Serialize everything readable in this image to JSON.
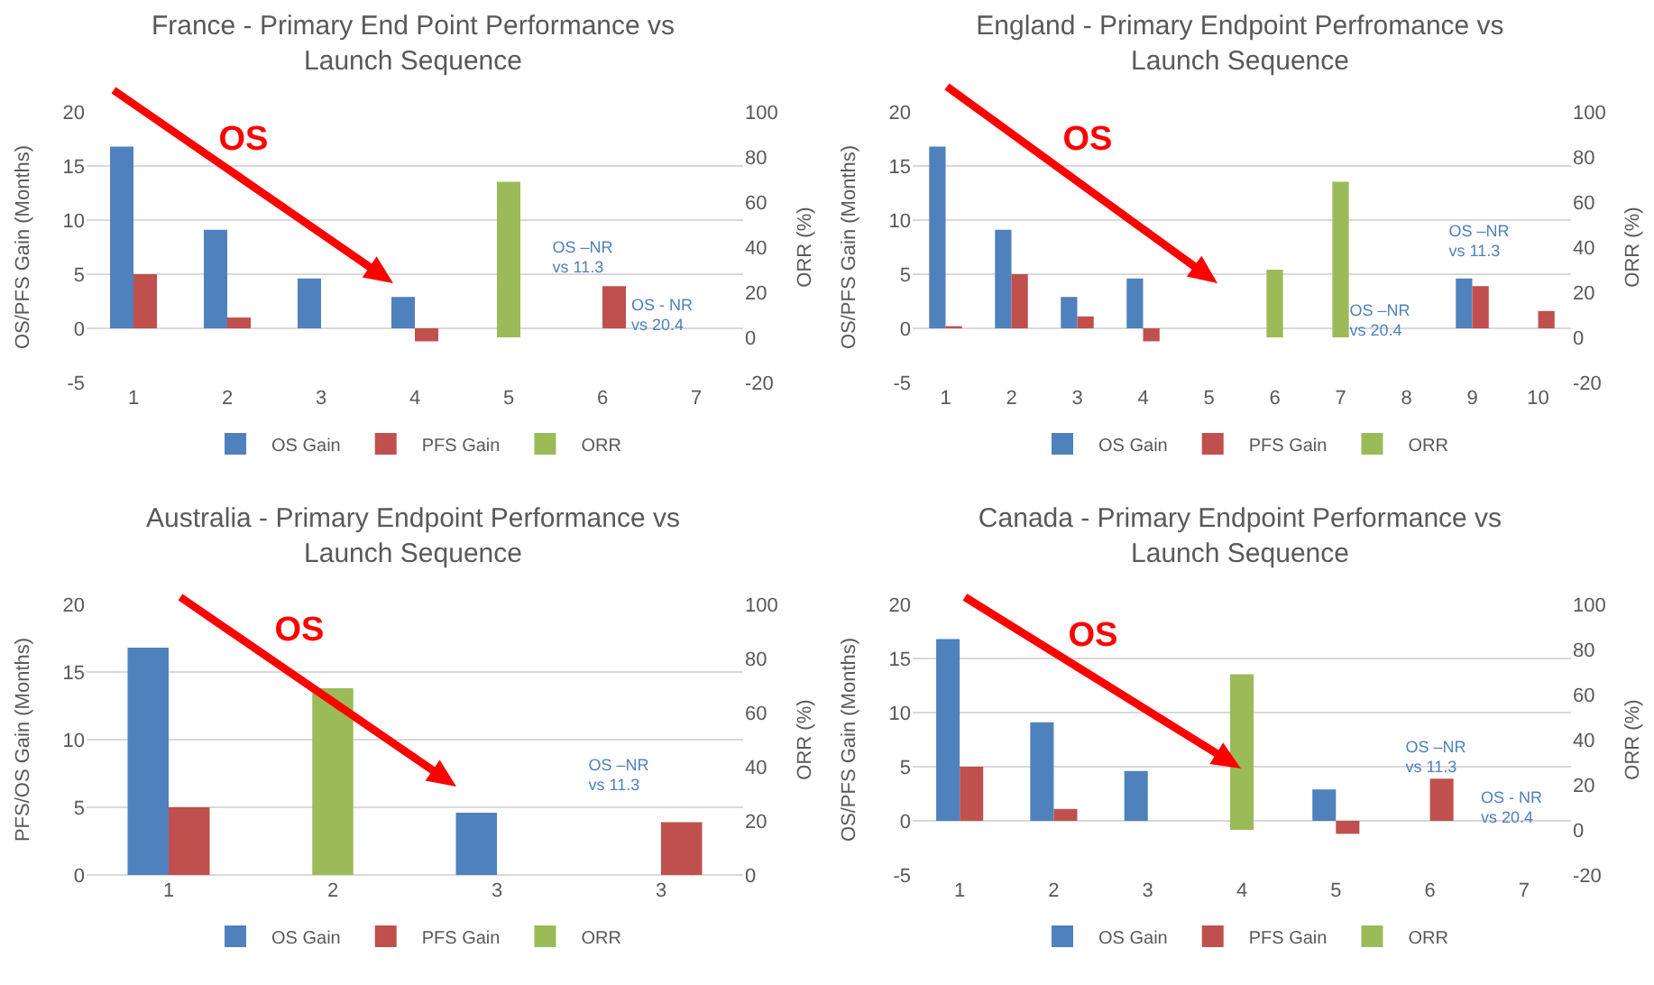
{
  "chart_data": [
    {
      "type": "bar",
      "title": "France - Primary End Point Performance vs\nLaunch Sequence",
      "ylabel": "OS/PFS Gain (Months)",
      "y2label": "ORR (%)",
      "categories": [
        "1",
        "2",
        "3",
        "4",
        "5",
        "6",
        "7"
      ],
      "series": [
        {
          "name": "OS Gain",
          "color": "#4f81bd",
          "values": [
            16.8,
            9.1,
            4.6,
            2.9,
            null,
            null,
            null
          ]
        },
        {
          "name": "PFS Gain",
          "color": "#c0504d",
          "values": [
            5,
            1,
            null,
            -1.2,
            null,
            3.9,
            null
          ]
        },
        {
          "name": "ORR",
          "color": "#9bbb59",
          "axis": "y2",
          "values": [
            null,
            null,
            null,
            null,
            69,
            null,
            null
          ]
        }
      ],
      "ylim": [
        -5,
        20
      ],
      "yticks": [
        -5,
        0,
        5,
        10,
        15,
        20
      ],
      "y2lim": [
        -20,
        100
      ],
      "y2ticks": [
        -20,
        0,
        20,
        40,
        60,
        80,
        100
      ],
      "grid": "y",
      "legend": "bottom",
      "annotations": [
        "OS",
        "OS –NR\nvs 11.3",
        "OS - NR\nvs 20.4"
      ]
    },
    {
      "type": "bar",
      "title": "England - Primary Endpoint Perfromance vs\nLaunch Sequence",
      "ylabel": "OS/PFS Gain (Months)",
      "y2label": "ORR (%)",
      "categories": [
        "1",
        "2",
        "3",
        "4",
        "5",
        "6",
        "7",
        "8",
        "9",
        "10"
      ],
      "series": [
        {
          "name": "OS Gain",
          "color": "#4f81bd",
          "values": [
            16.8,
            9.1,
            2.9,
            4.6,
            null,
            null,
            null,
            null,
            4.6,
            null
          ]
        },
        {
          "name": "PFS Gain",
          "color": "#c0504d",
          "values": [
            0.2,
            5,
            1.1,
            -1.2,
            null,
            null,
            null,
            null,
            3.9,
            1.6
          ]
        },
        {
          "name": "ORR",
          "color": "#9bbb59",
          "axis": "y2",
          "values": [
            null,
            null,
            null,
            null,
            null,
            30,
            69,
            null,
            null,
            null
          ]
        }
      ],
      "ylim": [
        -5,
        20
      ],
      "yticks": [
        -5,
        0,
        5,
        10,
        15,
        20
      ],
      "y2lim": [
        -20,
        100
      ],
      "y2ticks": [
        -20,
        0,
        20,
        40,
        60,
        80,
        100
      ],
      "grid": "y",
      "legend": "bottom",
      "annotations": [
        "OS",
        "OS –NR\nvs 20.4",
        "OS –NR\nvs 11.3"
      ]
    },
    {
      "type": "bar",
      "title": "Australia - Primary Endpoint Performance vs\nLaunch Sequence",
      "ylabel": "PFS/OS Gain (Months)",
      "y2label": "ORR (%)",
      "categories": [
        "1",
        "2",
        "3",
        "3"
      ],
      "series": [
        {
          "name": "OS Gain",
          "color": "#4f81bd",
          "values": [
            16.8,
            null,
            4.6,
            null
          ]
        },
        {
          "name": "PFS Gain",
          "color": "#c0504d",
          "values": [
            5,
            null,
            null,
            3.9
          ]
        },
        {
          "name": "ORR",
          "color": "#9bbb59",
          "axis": "y2",
          "values": [
            null,
            69,
            null,
            null
          ]
        }
      ],
      "ylim": [
        0,
        20
      ],
      "yticks": [
        0,
        5,
        10,
        15,
        20
      ],
      "y2lim": [
        0,
        100
      ],
      "y2ticks": [
        0,
        20,
        40,
        60,
        80,
        100
      ],
      "grid": "y",
      "legend": "bottom",
      "annotations": [
        "OS",
        "OS –NR\nvs 11.3"
      ]
    },
    {
      "type": "bar",
      "title": "Canada - Primary Endpoint Performance vs\nLaunch Sequence",
      "ylabel": "OS/PFS Gain (Months)",
      "y2label": "ORR (%)",
      "categories": [
        "1",
        "2",
        "3",
        "4",
        "5",
        "6",
        "7"
      ],
      "series": [
        {
          "name": "OS Gain",
          "color": "#4f81bd",
          "values": [
            16.8,
            9.1,
            4.6,
            null,
            2.9,
            null,
            null
          ]
        },
        {
          "name": "PFS Gain",
          "color": "#c0504d",
          "values": [
            5,
            1.1,
            null,
            null,
            -1.2,
            3.9,
            null
          ]
        },
        {
          "name": "ORR",
          "color": "#9bbb59",
          "axis": "y2",
          "values": [
            null,
            null,
            null,
            69,
            null,
            null,
            null
          ]
        }
      ],
      "ylim": [
        -5,
        20
      ],
      "yticks": [
        -5,
        0,
        5,
        10,
        15,
        20
      ],
      "y2lim": [
        -20,
        100
      ],
      "y2ticks": [
        -20,
        0,
        20,
        40,
        60,
        80,
        100
      ],
      "grid": "y",
      "legend": "bottom",
      "annotations": [
        "OS",
        "OS –NR\nvs 11.3",
        "OS - NR\nvs 20.4"
      ]
    }
  ]
}
